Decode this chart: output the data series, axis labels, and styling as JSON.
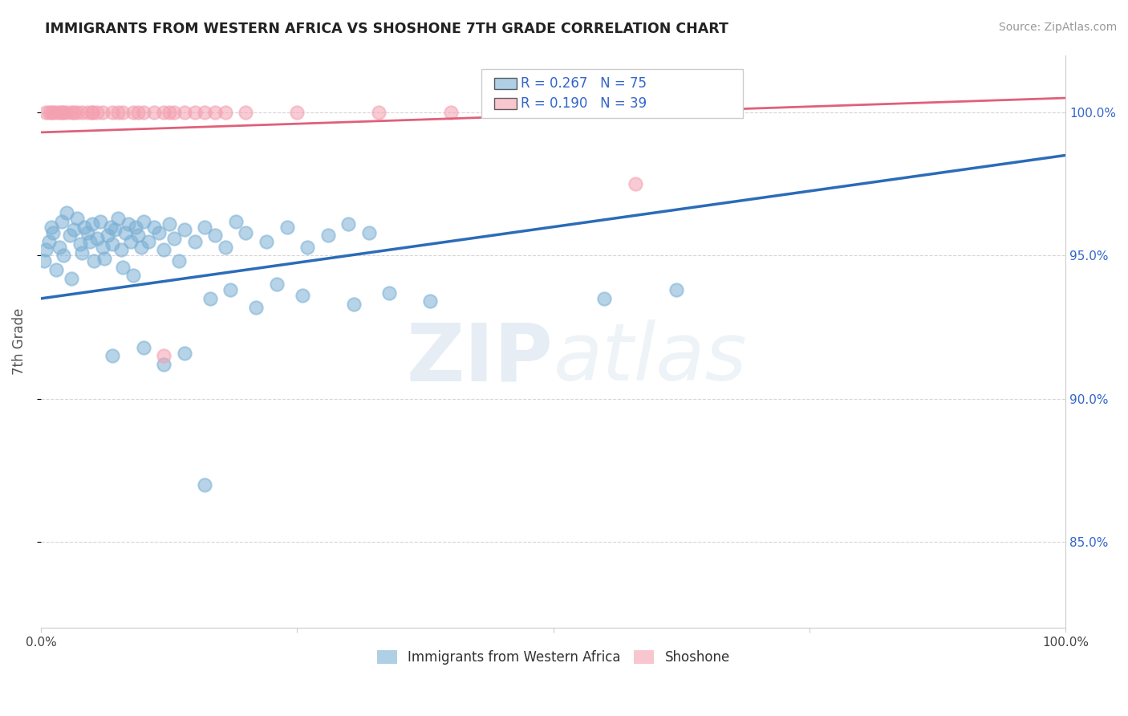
{
  "title": "IMMIGRANTS FROM WESTERN AFRICA VS SHOSHONE 7TH GRADE CORRELATION CHART",
  "source": "Source: ZipAtlas.com",
  "ylabel": "7th Grade",
  "xlim": [
    0.0,
    100.0
  ],
  "ylim": [
    82.0,
    102.0
  ],
  "yticks": [
    85.0,
    90.0,
    95.0,
    100.0
  ],
  "yticklabels": [
    "85.0%",
    "90.0%",
    "95.0%",
    "100.0%"
  ],
  "blue_R": 0.267,
  "blue_N": 75,
  "pink_R": 0.19,
  "pink_N": 39,
  "blue_color": "#7BAFD4",
  "pink_color": "#F4A0B0",
  "blue_line_color": "#2B6CB8",
  "pink_line_color": "#E0607A",
  "legend_label_blue": "Immigrants from Western Africa",
  "legend_label_pink": "Shoshone",
  "blue_scatter_x": [
    0.3,
    0.5,
    0.8,
    1.0,
    1.2,
    1.5,
    1.8,
    2.0,
    2.2,
    2.5,
    2.8,
    3.0,
    3.2,
    3.5,
    3.8,
    4.0,
    4.2,
    4.5,
    4.8,
    5.0,
    5.2,
    5.5,
    5.8,
    6.0,
    6.2,
    6.5,
    6.8,
    7.0,
    7.2,
    7.5,
    7.8,
    8.0,
    8.2,
    8.5,
    8.8,
    9.0,
    9.2,
    9.5,
    9.8,
    10.0,
    10.5,
    11.0,
    11.5,
    12.0,
    12.5,
    13.0,
    13.5,
    14.0,
    15.0,
    16.0,
    17.0,
    18.0,
    19.0,
    20.0,
    22.0,
    24.0,
    26.0,
    28.0,
    30.0,
    32.0,
    16.5,
    18.5,
    21.0,
    23.0,
    25.5,
    30.5,
    34.0,
    38.0,
    55.0,
    62.0,
    7.0,
    10.0,
    12.0,
    14.0,
    16.0
  ],
  "blue_scatter_y": [
    94.8,
    95.2,
    95.5,
    96.0,
    95.8,
    94.5,
    95.3,
    96.2,
    95.0,
    96.5,
    95.7,
    94.2,
    95.9,
    96.3,
    95.4,
    95.1,
    96.0,
    95.8,
    95.5,
    96.1,
    94.8,
    95.6,
    96.2,
    95.3,
    94.9,
    95.7,
    96.0,
    95.4,
    95.9,
    96.3,
    95.2,
    94.6,
    95.8,
    96.1,
    95.5,
    94.3,
    96.0,
    95.7,
    95.3,
    96.2,
    95.5,
    96.0,
    95.8,
    95.2,
    96.1,
    95.6,
    94.8,
    95.9,
    95.5,
    96.0,
    95.7,
    95.3,
    96.2,
    95.8,
    95.5,
    96.0,
    95.3,
    95.7,
    96.1,
    95.8,
    93.5,
    93.8,
    93.2,
    94.0,
    93.6,
    93.3,
    93.7,
    93.4,
    93.5,
    93.8,
    91.5,
    91.8,
    91.2,
    91.6,
    87.0
  ],
  "pink_scatter_x": [
    0.5,
    1.0,
    1.5,
    2.0,
    2.5,
    3.0,
    3.5,
    4.0,
    5.0,
    6.0,
    7.0,
    8.0,
    9.0,
    10.0,
    11.0,
    12.0,
    13.0,
    14.0,
    15.0,
    16.0,
    17.0,
    18.0,
    0.8,
    1.2,
    1.8,
    2.2,
    3.2,
    4.5,
    5.5,
    7.5,
    9.5,
    12.5,
    20.0,
    25.0,
    33.0,
    40.0,
    58.0,
    12.0,
    5.0
  ],
  "pink_scatter_y": [
    100.0,
    100.0,
    100.0,
    100.0,
    100.0,
    100.0,
    100.0,
    100.0,
    100.0,
    100.0,
    100.0,
    100.0,
    100.0,
    100.0,
    100.0,
    100.0,
    100.0,
    100.0,
    100.0,
    100.0,
    100.0,
    100.0,
    100.0,
    100.0,
    100.0,
    100.0,
    100.0,
    100.0,
    100.0,
    100.0,
    100.0,
    100.0,
    100.0,
    100.0,
    100.0,
    100.0,
    97.5,
    91.5,
    100.0
  ],
  "blue_trend_x": [
    0.0,
    100.0
  ],
  "blue_trend_y": [
    93.5,
    98.5
  ],
  "pink_trend_x": [
    0.0,
    100.0
  ],
  "pink_trend_y": [
    99.3,
    100.5
  ],
  "grid_color": "#CCCCCC",
  "background_color": "#FFFFFF",
  "title_color": "#222222",
  "axis_label_color": "#555555",
  "tick_label_color": "#444444",
  "right_ytick_color": "#3366CC",
  "watermark_zip": "ZIP",
  "watermark_atlas": "atlas"
}
